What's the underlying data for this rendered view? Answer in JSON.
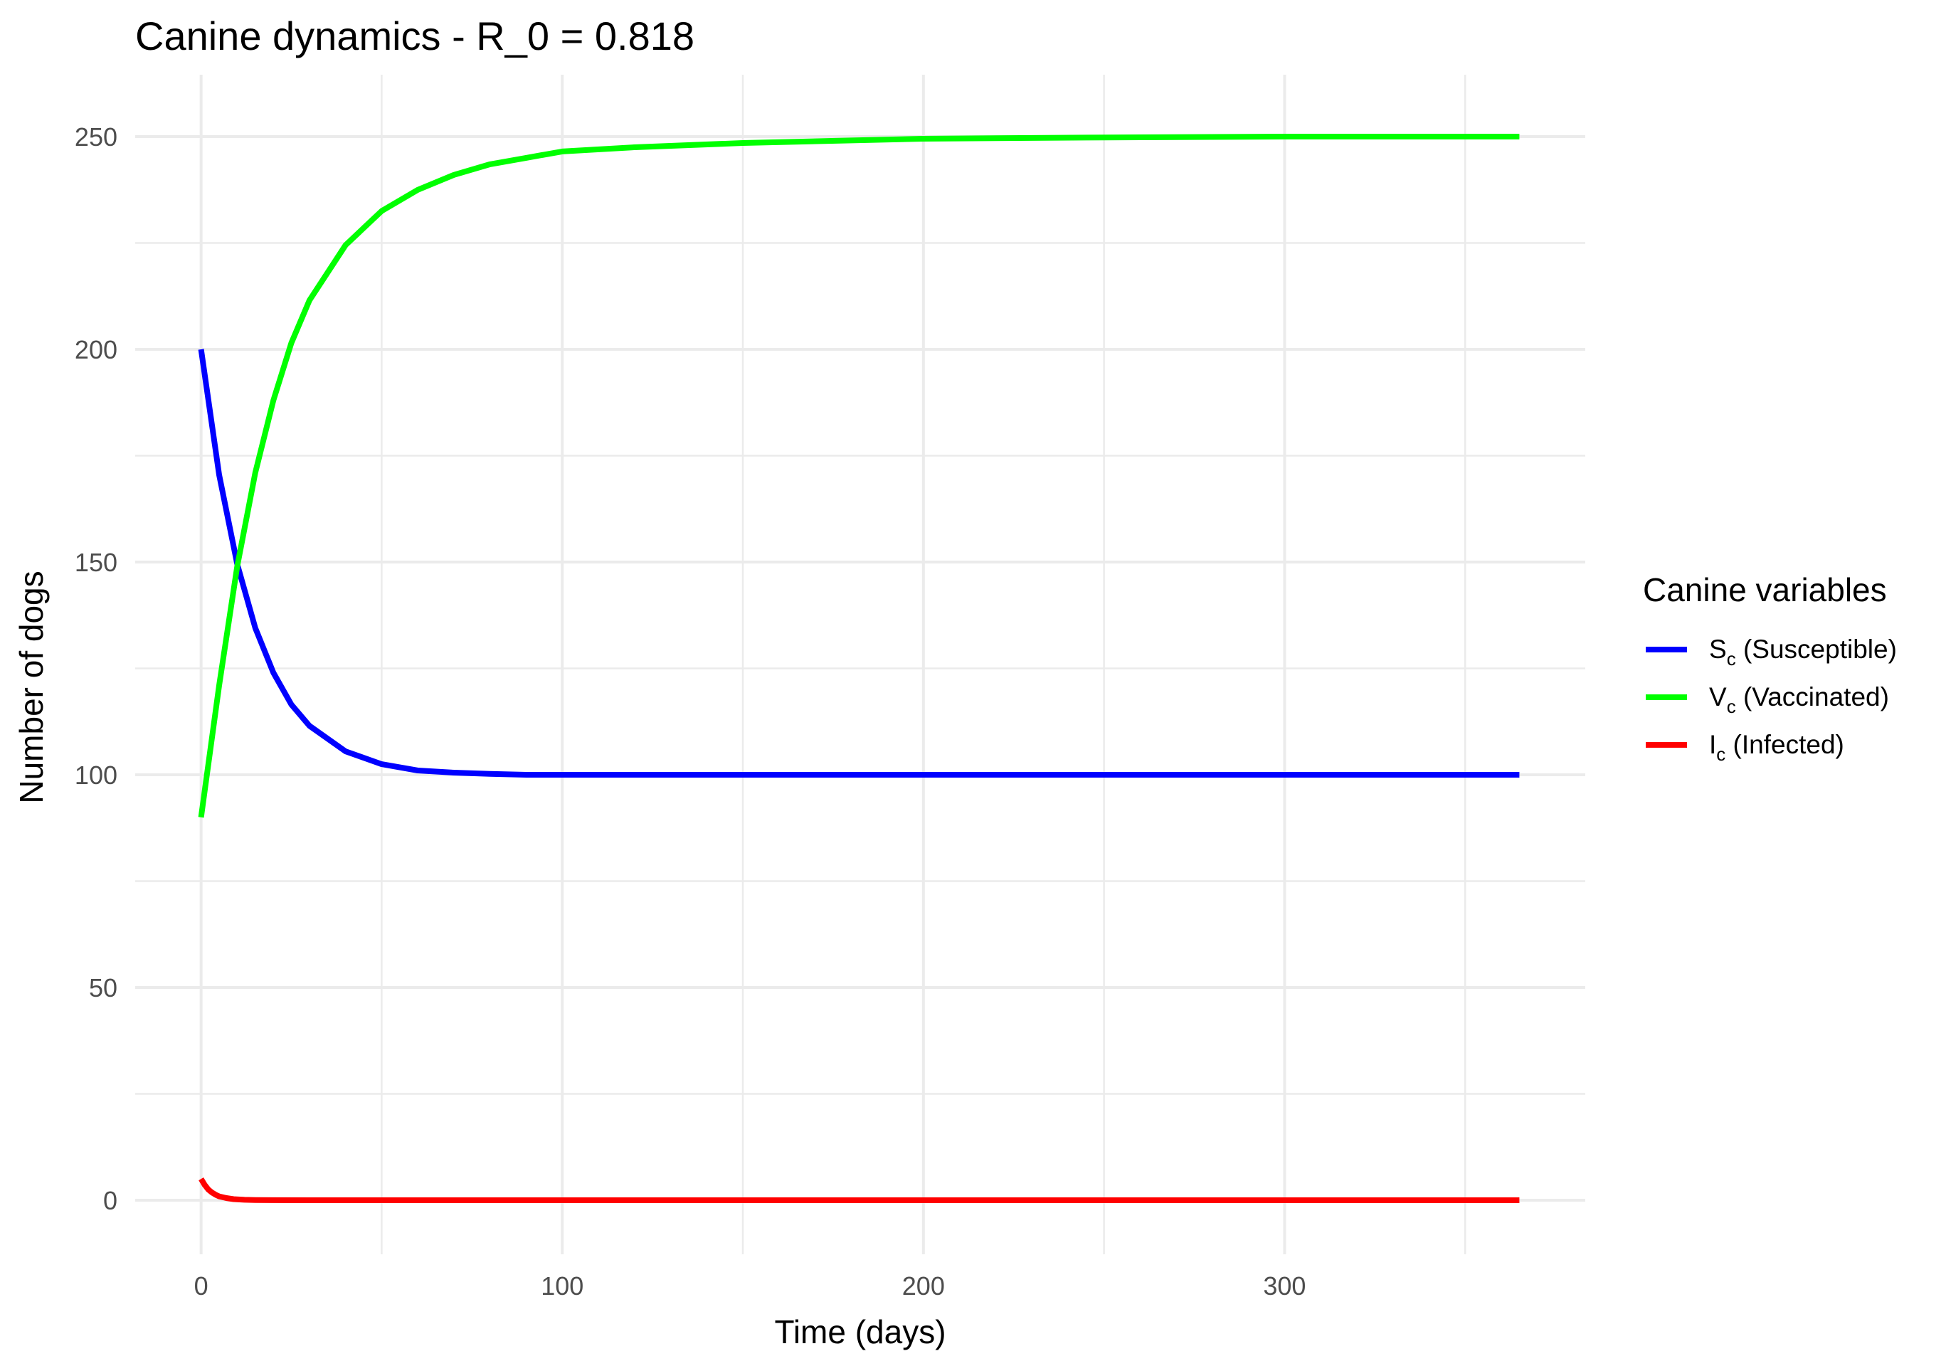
{
  "chart_data": {
    "type": "line",
    "title": "Canine dynamics - R_0 = 0.818",
    "xlabel": "Time (days)",
    "ylabel": "Number of dogs",
    "xlim": [
      0,
      365
    ],
    "ylim": [
      0,
      250
    ],
    "xticks": [
      0,
      100,
      200,
      300
    ],
    "yticks": [
      0,
      50,
      100,
      150,
      200,
      250
    ],
    "grid": true,
    "legend": {
      "title": "Canine variables",
      "placement": "right"
    },
    "series": [
      {
        "name": "S_c (Susceptible)",
        "label_main": "S",
        "label_sub": "c",
        "label_rest": " (Susceptible)",
        "color": "#0000ff",
        "x": [
          0,
          5,
          10,
          15,
          20,
          25,
          30,
          40,
          50,
          60,
          70,
          80,
          90,
          100,
          120,
          150,
          200,
          250,
          300,
          365
        ],
        "y": [
          200,
          170.5,
          149.5,
          134.5,
          124,
          116.5,
          111.5,
          105.5,
          102.5,
          101,
          100.5,
          100.2,
          100,
          100,
          100,
          100,
          100,
          100,
          100,
          100
        ]
      },
      {
        "name": "V_c (Vaccinated)",
        "label_main": "V",
        "label_sub": "c",
        "label_rest": " (Vaccinated)",
        "color": "#00ff00",
        "x": [
          0,
          5,
          10,
          15,
          20,
          25,
          30,
          40,
          50,
          60,
          70,
          80,
          90,
          100,
          120,
          150,
          200,
          250,
          300,
          365
        ],
        "y": [
          90,
          121,
          149,
          171,
          188,
          201.5,
          211.5,
          224.5,
          232.5,
          237.5,
          241,
          243.5,
          245,
          246.5,
          247.5,
          248.5,
          249.5,
          249.8,
          250,
          250
        ]
      },
      {
        "name": "I_c (Infected)",
        "label_main": "I",
        "label_sub": "c",
        "label_rest": " (Infected)",
        "color": "#ff0000",
        "x": [
          0,
          1,
          2,
          3,
          4,
          5,
          7,
          9,
          12,
          15,
          20,
          30,
          50,
          100,
          200,
          300,
          365
        ],
        "y": [
          5,
          3.6,
          2.5,
          1.8,
          1.3,
          0.9,
          0.5,
          0.25,
          0.1,
          0.05,
          0.02,
          0,
          0,
          0,
          0,
          0,
          0
        ]
      }
    ]
  }
}
